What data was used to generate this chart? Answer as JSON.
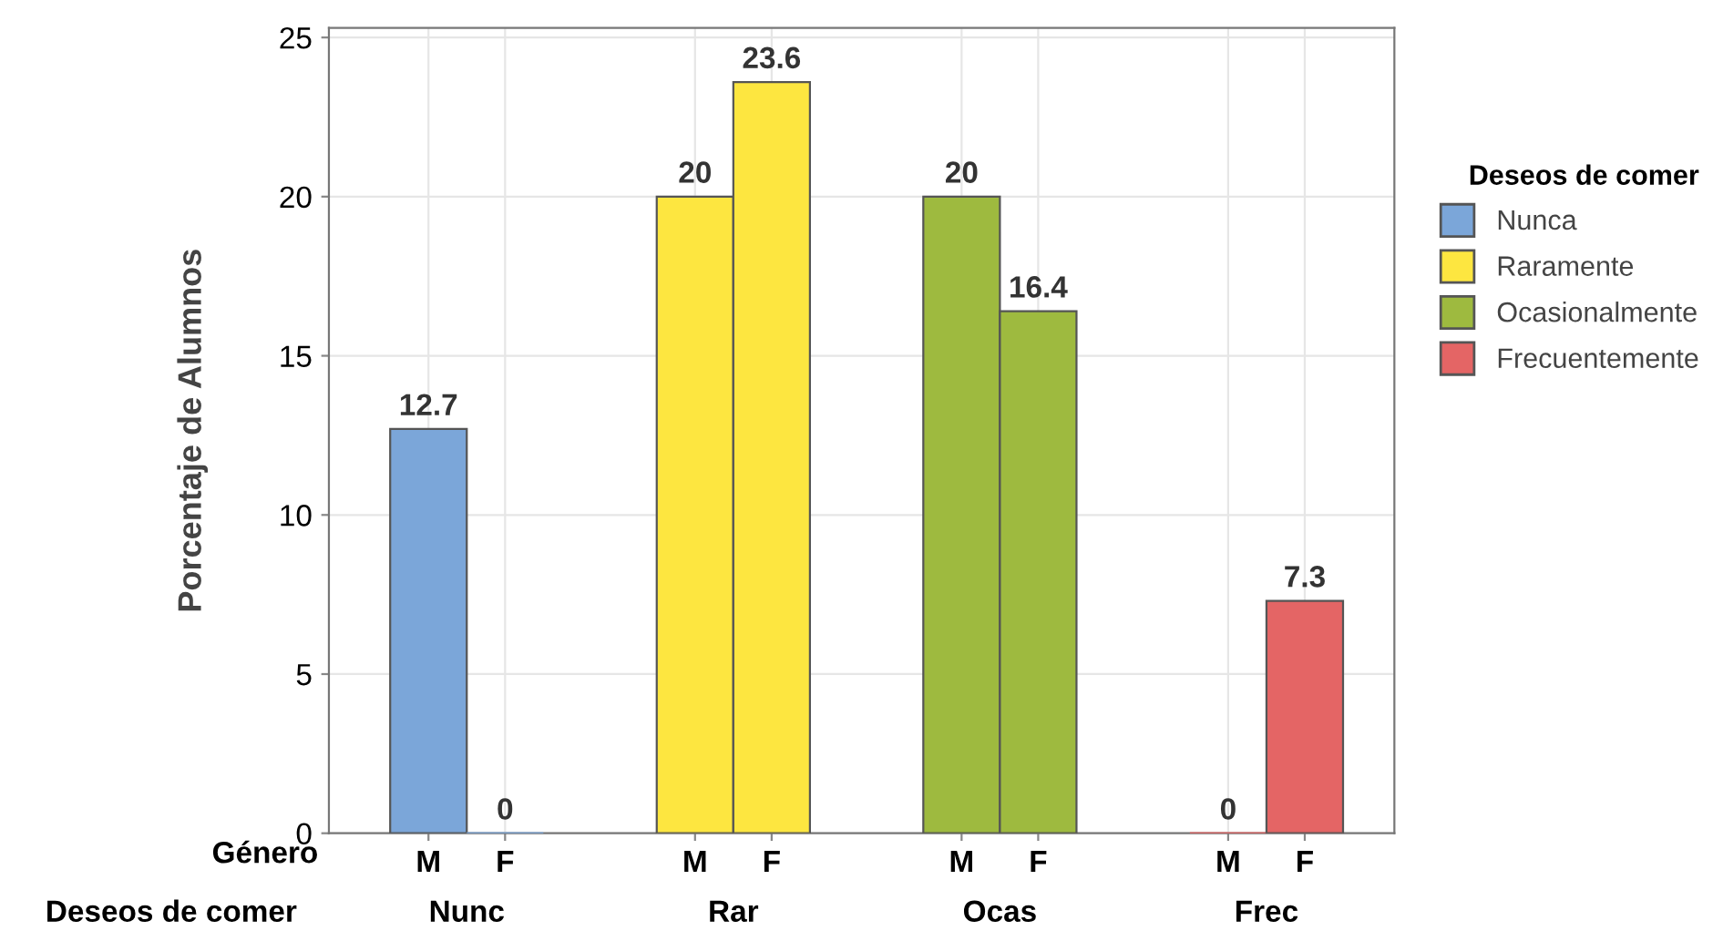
{
  "chart_data": {
    "type": "bar",
    "ylabel": "Porcentaje de Alumnos",
    "legend_title": "Deseos de comer",
    "categories": [
      "M",
      "F",
      "M",
      "F",
      "M",
      "F",
      "M",
      "F"
    ],
    "series": [
      {
        "name": "Nunca",
        "color": "#7ba6d9",
        "values": [
          12.7,
          0,
          null,
          null,
          null,
          null,
          null,
          null
        ]
      },
      {
        "name": "Raramente",
        "color": "#fde640",
        "values": [
          null,
          null,
          20,
          23.6,
          null,
          null,
          null,
          null
        ]
      },
      {
        "name": "Ocasionalmente",
        "color": "#9eba3f",
        "values": [
          null,
          null,
          null,
          null,
          20,
          16.4,
          null,
          null
        ]
      },
      {
        "name": "Frecuentemente",
        "color": "#e46565",
        "values": [
          null,
          null,
          null,
          null,
          null,
          null,
          0,
          7.3
        ]
      }
    ],
    "annotations": [
      "Género",
      "Deseos de comer",
      "Nunc",
      "Rar",
      "Ocas",
      "Frec"
    ],
    "ylim": [
      0,
      25.3
    ],
    "yticks": [
      0,
      5,
      10,
      15,
      20,
      25
    ],
    "grid": true,
    "legend": "right",
    "data_labels": true
  }
}
